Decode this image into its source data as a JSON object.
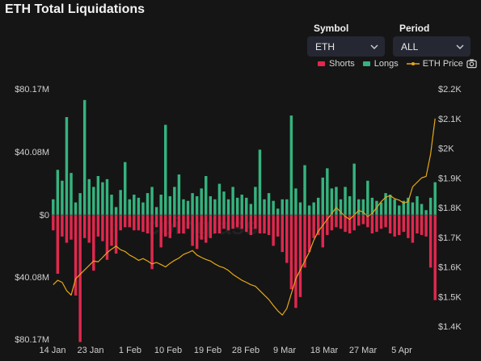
{
  "title": "ETH Total Liquidations",
  "controls": {
    "symbol_label": "Symbol",
    "symbol_value": "ETH",
    "period_label": "Period",
    "period_value": "ALL"
  },
  "legend": {
    "shorts": "Shorts",
    "longs": "Longs",
    "price": "ETH Price"
  },
  "colors": {
    "shorts": "#e0284e",
    "longs": "#35b37e",
    "price": "#e6a817",
    "background": "#151515"
  },
  "icons": [
    "chevron-down-icon",
    "camera-icon"
  ],
  "chart_data": {
    "type": "bar",
    "watermark": "coinglass",
    "x_ticks": [
      "14 Jan",
      "23 Jan",
      "1 Feb",
      "10 Feb",
      "19 Feb",
      "28 Feb",
      "9 Mar",
      "18 Mar",
      "27 Mar",
      "5 Apr"
    ],
    "y_left_ticks": [
      "$80.17M",
      "$40.08M",
      "$0",
      "$40.08M",
      "$80.17M"
    ],
    "y_left_range": [
      -80.17,
      80.17
    ],
    "y_right_ticks": [
      "$2.2K",
      "$2.1K",
      "$2K",
      "$1.9K",
      "$1.8K",
      "$1.7K",
      "$1.6K",
      "$1.5K",
      "$1.4K"
    ],
    "y_right_range": [
      1400,
      2200
    ],
    "grid": false,
    "legend_position": "top-right",
    "longs": [
      10,
      29,
      22,
      63,
      27,
      8,
      14,
      74,
      23,
      18,
      25,
      21,
      23,
      13,
      5,
      16,
      34,
      10,
      13,
      11,
      8,
      14,
      18,
      5,
      13,
      58,
      12,
      18,
      26,
      10,
      9,
      14,
      12,
      17,
      25,
      12,
      10,
      20,
      15,
      10,
      18,
      11,
      13,
      11,
      7,
      18,
      42,
      10,
      14,
      9,
      4,
      10,
      10,
      64,
      17,
      8,
      32,
      6,
      8,
      11,
      24,
      30,
      17,
      18,
      10,
      18,
      12,
      33,
      10,
      10,
      22,
      11,
      9,
      8,
      14,
      13,
      10,
      6,
      9,
      11,
      8,
      12,
      7,
      3,
      11,
      21
    ],
    "shorts": [
      10,
      38,
      14,
      18,
      16,
      52,
      82,
      15,
      18,
      36,
      14,
      17,
      29,
      20,
      25,
      10,
      8,
      8,
      10,
      10,
      11,
      12,
      35,
      8,
      21,
      14,
      15,
      8,
      12,
      12,
      9,
      20,
      22,
      16,
      18,
      15,
      12,
      12,
      9,
      10,
      9,
      8,
      9,
      11,
      13,
      9,
      12,
      12,
      13,
      20,
      14,
      24,
      31,
      48,
      60,
      53,
      34,
      24,
      15,
      13,
      21,
      13,
      10,
      8,
      9,
      11,
      12,
      10,
      7,
      6,
      8,
      12,
      11,
      9,
      8,
      12,
      14,
      13,
      11,
      15,
      18,
      12,
      13,
      14,
      34,
      55
    ],
    "price": [
      1540,
      1555,
      1548,
      1520,
      1505,
      1560,
      1575,
      1590,
      1605,
      1620,
      1617,
      1632,
      1648,
      1660,
      1670,
      1658,
      1652,
      1640,
      1632,
      1622,
      1628,
      1620,
      1610,
      1615,
      1608,
      1600,
      1612,
      1622,
      1630,
      1642,
      1648,
      1655,
      1640,
      1632,
      1625,
      1620,
      1610,
      1602,
      1597,
      1588,
      1575,
      1565,
      1555,
      1548,
      1540,
      1535,
      1520,
      1505,
      1490,
      1470,
      1452,
      1438,
      1460,
      1510,
      1560,
      1590,
      1620,
      1650,
      1690,
      1720,
      1740,
      1760,
      1780,
      1800,
      1785,
      1770,
      1760,
      1775,
      1790,
      1785,
      1770,
      1780,
      1800,
      1820,
      1835,
      1840,
      1830,
      1825,
      1815,
      1820,
      1870,
      1885,
      1900,
      1905,
      1980,
      2100
    ]
  }
}
